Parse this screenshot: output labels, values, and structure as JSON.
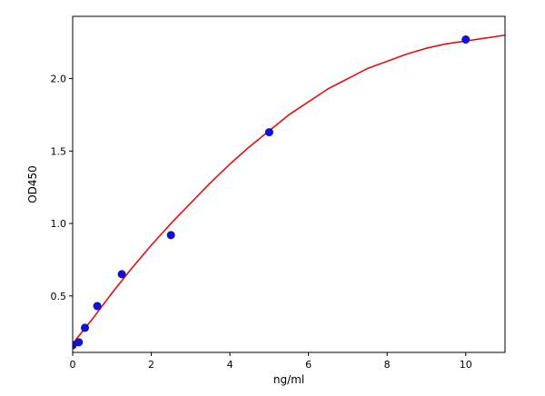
{
  "chart_data": {
    "type": "scatter",
    "title": "",
    "xlabel": "ng/ml",
    "ylabel": "OD450",
    "xlim": [
      0,
      11
    ],
    "ylim": [
      0.11,
      2.43
    ],
    "grid": false,
    "x_ticks": [
      0,
      2,
      4,
      6,
      8,
      10
    ],
    "x_tick_labels": [
      "0",
      "2",
      "4",
      "6",
      "8",
      "10"
    ],
    "y_ticks": [
      0.5,
      1.0,
      1.5,
      2.0
    ],
    "y_tick_labels": [
      "0.5",
      "1.0",
      "1.5",
      "2.0"
    ],
    "series": [
      {
        "type": "scatter",
        "color": "#1010e0",
        "x": [
          0,
          0.156,
          0.3125,
          0.625,
          1.25,
          2.5,
          5,
          10
        ],
        "y": [
          0.16,
          0.18,
          0.28,
          0.43,
          0.65,
          0.92,
          1.63,
          2.27
        ]
      },
      {
        "type": "line",
        "color": "#e01010",
        "x": [
          0,
          0.5,
          1,
          1.5,
          2,
          2.5,
          3,
          3.5,
          4,
          4.5,
          5,
          5.5,
          6,
          6.5,
          7,
          7.5,
          8,
          8.5,
          9,
          9.5,
          10,
          10.5,
          11
        ],
        "y": [
          0.17,
          0.34,
          0.52,
          0.69,
          0.85,
          1.0,
          1.14,
          1.28,
          1.41,
          1.53,
          1.64,
          1.75,
          1.84,
          1.93,
          2.0,
          2.07,
          2.12,
          2.17,
          2.21,
          2.24,
          2.26,
          2.28,
          2.3
        ]
      }
    ]
  }
}
